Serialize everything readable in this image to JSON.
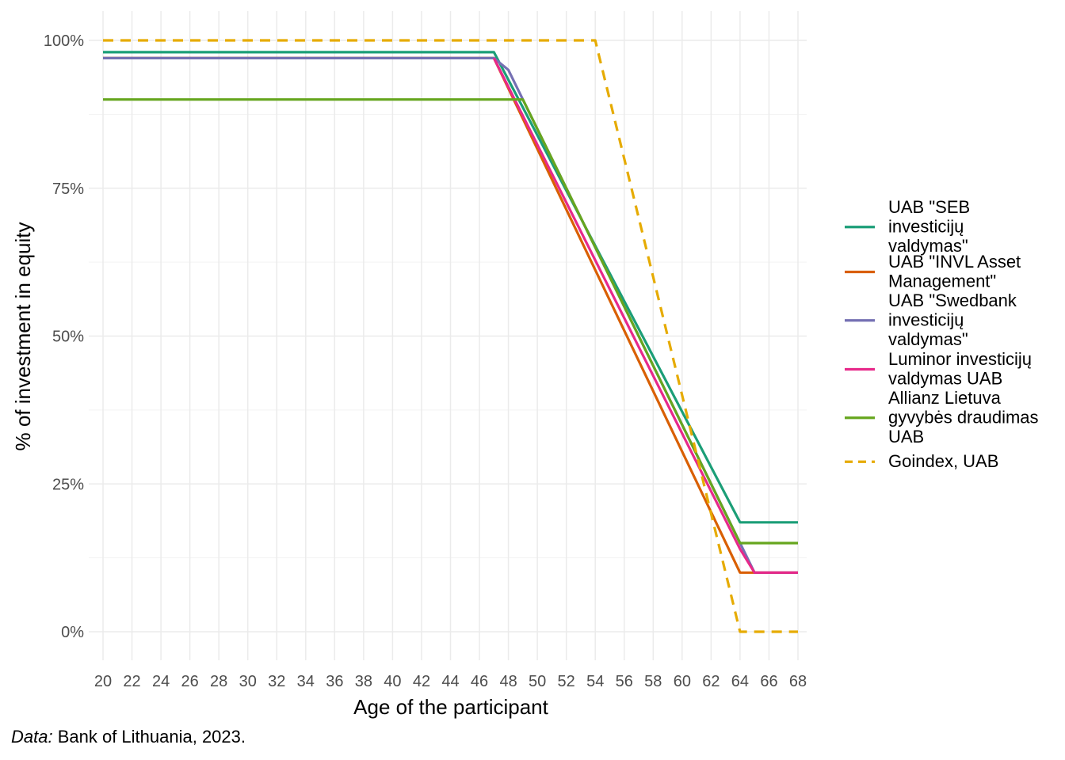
{
  "chart_data": {
    "type": "line",
    "title": "",
    "xlabel": "Age of the participant",
    "ylabel": "% of investment in equity",
    "xlim": [
      20,
      68
    ],
    "ylim": [
      0,
      100
    ],
    "x_ticks": [
      "20",
      "22",
      "24",
      "26",
      "28",
      "30",
      "32",
      "34",
      "36",
      "38",
      "40",
      "42",
      "44",
      "46",
      "48",
      "50",
      "52",
      "54",
      "56",
      "58",
      "60",
      "62",
      "64",
      "66",
      "68"
    ],
    "y_ticks": [
      "0%",
      "25%",
      "50%",
      "75%",
      "100%"
    ],
    "grid": true,
    "legend_position": "right",
    "series": [
      {
        "name": "UAB \"SEB investicijų valdymas\"",
        "color": "#1b9e77",
        "dash": "solid",
        "legend_lines": [
          "UAB \"SEB",
          "investicijų",
          "valdymas\""
        ],
        "points": [
          [
            20,
            98
          ],
          [
            47,
            98
          ],
          [
            64,
            18.5
          ],
          [
            68,
            18.5
          ]
        ]
      },
      {
        "name": "UAB \"INVL Asset Management\"",
        "color": "#d95f02",
        "dash": "solid",
        "legend_lines": [
          "UAB \"INVL Asset",
          "Management\""
        ],
        "points": [
          [
            20,
            97
          ],
          [
            47,
            97
          ],
          [
            64,
            10
          ],
          [
            68,
            10
          ]
        ]
      },
      {
        "name": "UAB \"Swedbank investicijų valdymas\"",
        "color": "#7570b3",
        "dash": "solid",
        "legend_lines": [
          "UAB \"Swedbank",
          "investicijų",
          "valdymas\""
        ],
        "points": [
          [
            20,
            97
          ],
          [
            47,
            97
          ],
          [
            48,
            95
          ],
          [
            65,
            10
          ],
          [
            68,
            10
          ]
        ]
      },
      {
        "name": "Luminor investicijų valdymas UAB",
        "color": "#e7298a",
        "dash": "solid",
        "legend_lines": [
          "Luminor investicijų",
          "valdymas UAB"
        ],
        "points": [
          [
            47,
            97
          ],
          [
            64,
            14
          ],
          [
            65,
            10
          ],
          [
            68,
            10
          ]
        ]
      },
      {
        "name": "Allianz Lietuva gyvybės draudimas UAB",
        "color": "#66a61e",
        "dash": "solid",
        "legend_lines": [
          "Allianz Lietuva",
          "gyvybės draudimas",
          "UAB"
        ],
        "points": [
          [
            20,
            90
          ],
          [
            49,
            90
          ],
          [
            64,
            15
          ],
          [
            68,
            15
          ]
        ]
      },
      {
        "name": "Goindex, UAB",
        "color": "#e6ab02",
        "dash": "dashed",
        "legend_lines": [
          "Goindex, UAB"
        ],
        "points": [
          [
            20,
            100
          ],
          [
            54,
            100
          ],
          [
            64,
            0
          ],
          [
            68,
            0
          ]
        ]
      }
    ]
  },
  "caption": {
    "label": "Data:",
    "text": " Bank of Lithuania, 2023."
  }
}
